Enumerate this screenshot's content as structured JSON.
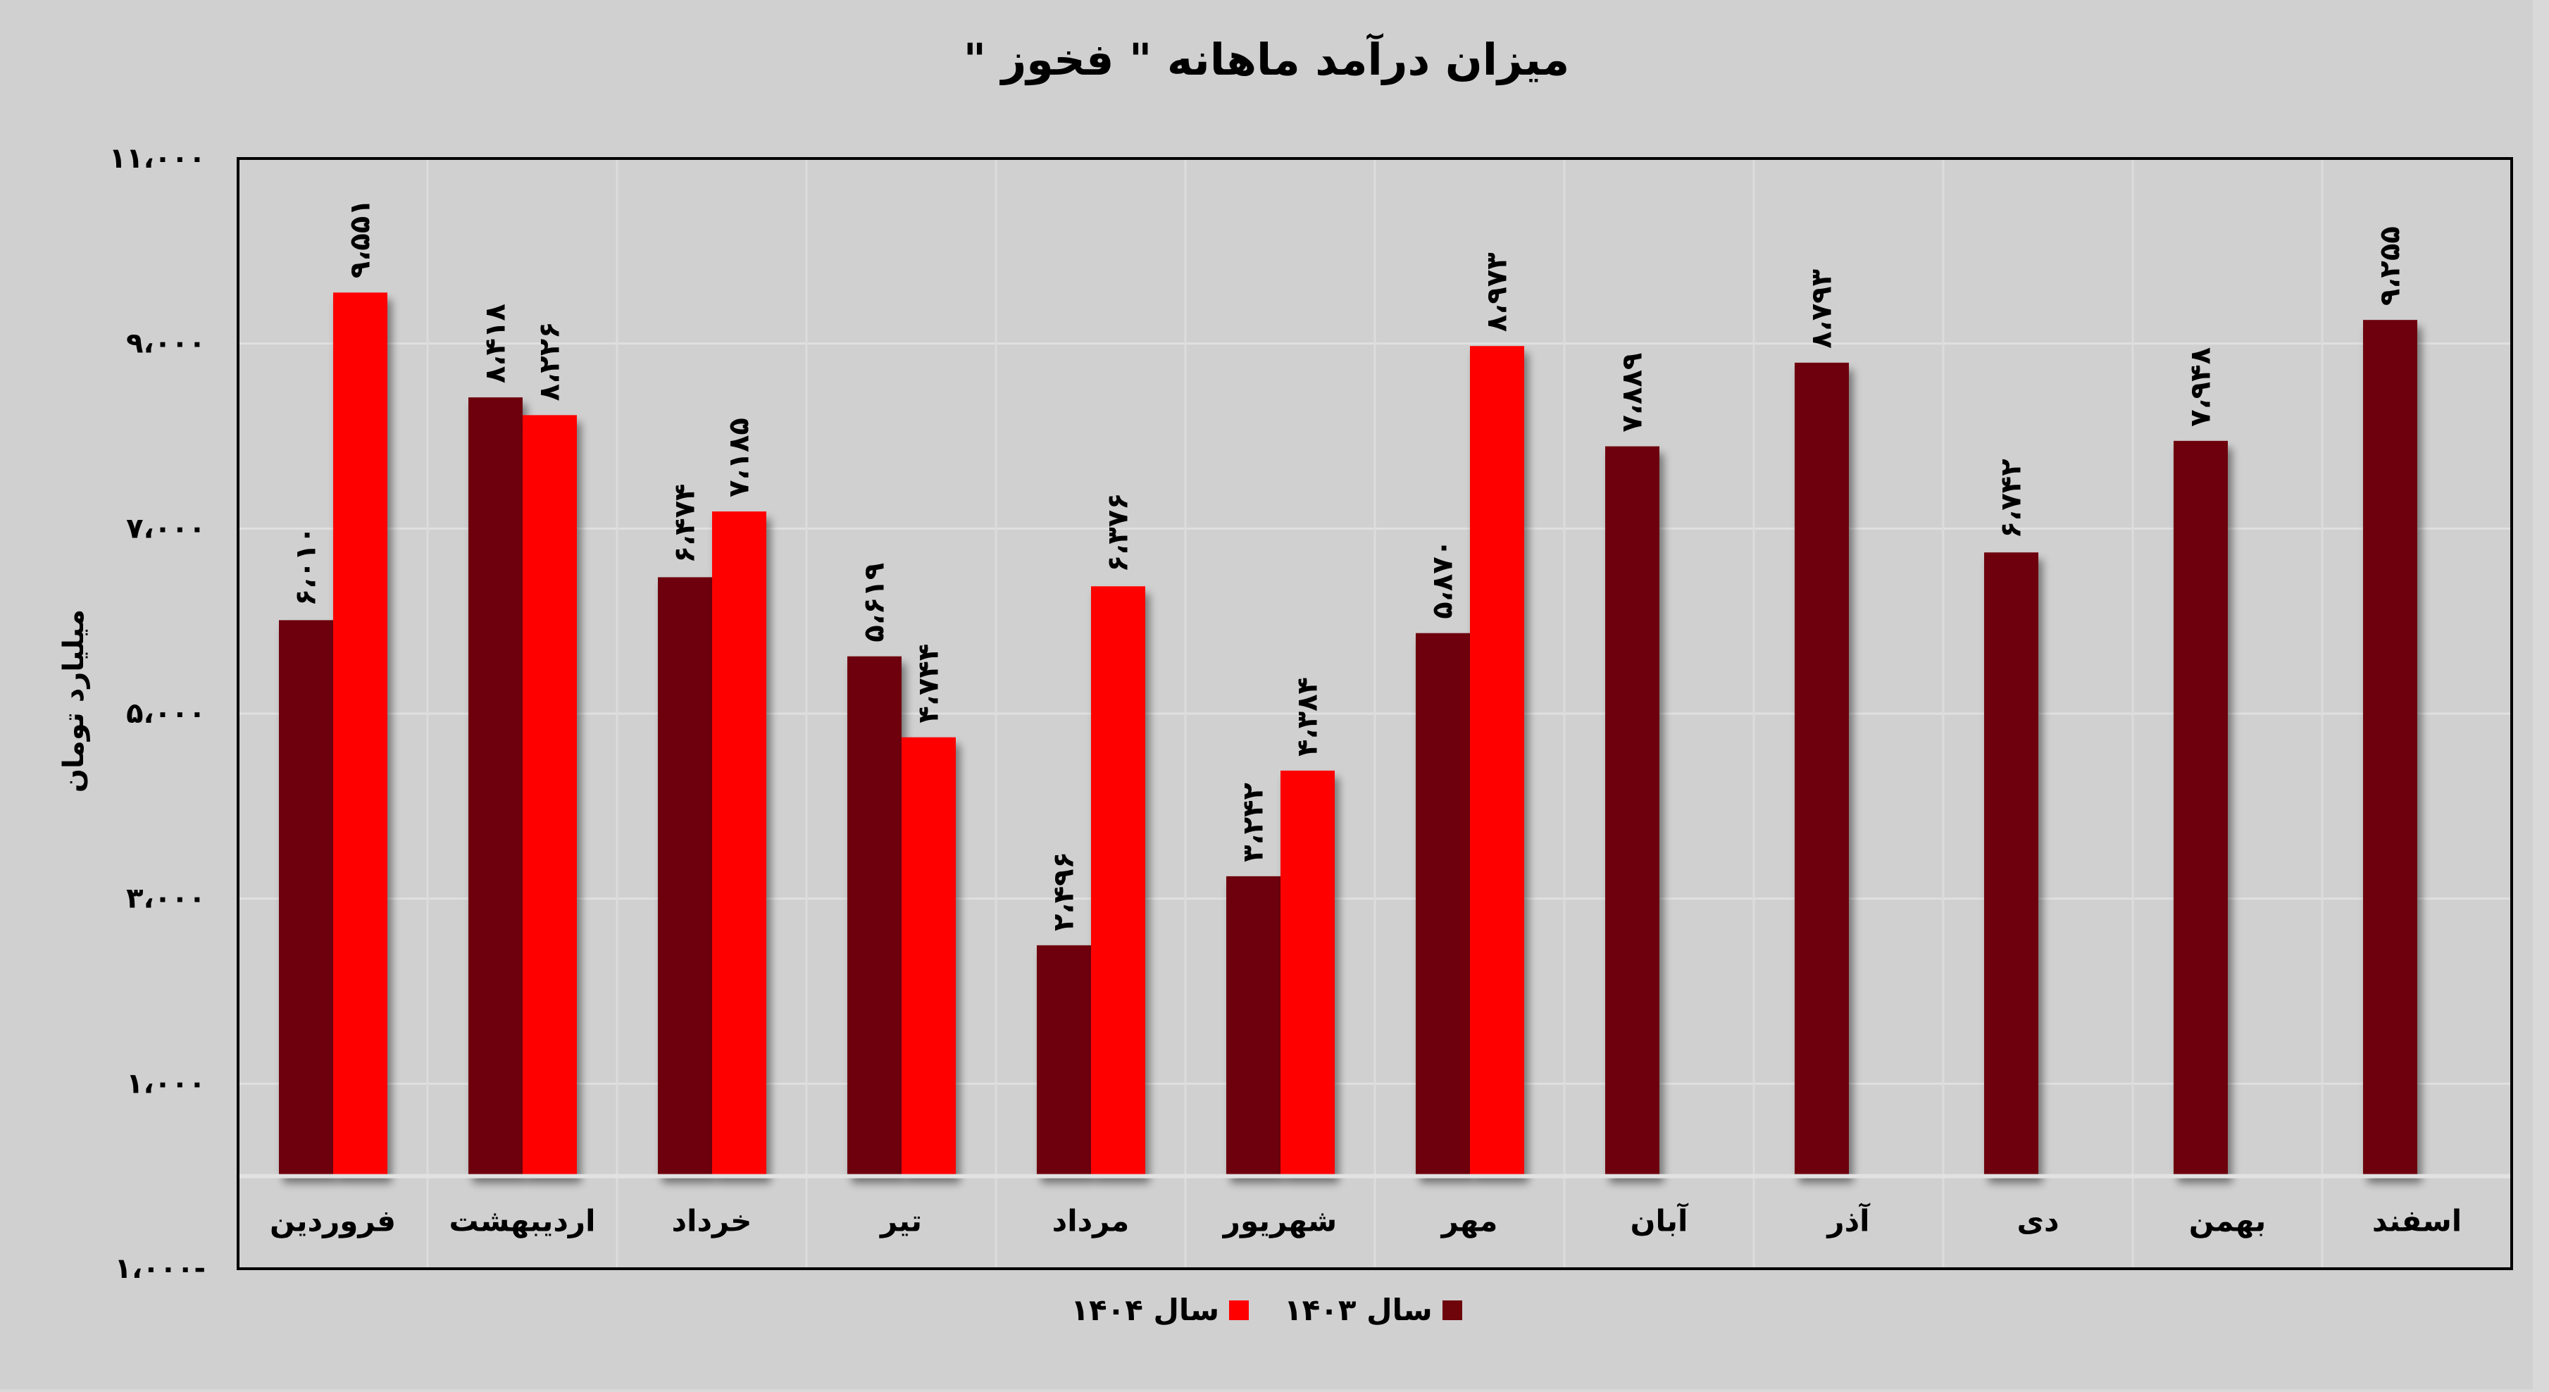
{
  "chart_data": {
    "type": "bar",
    "title": "میزان درآمد ماهانه \" فخوز \"",
    "xlabel": "",
    "ylabel": "میلیارد تومان",
    "ylim": [
      -1000,
      11000
    ],
    "yticks": [
      -1000,
      1000,
      3000,
      5000,
      7000,
      9000,
      11000
    ],
    "ytick_labels": [
      "۱،۰۰۰-",
      "۱،۰۰۰",
      "۳،۰۰۰",
      "۵،۰۰۰",
      "۷،۰۰۰",
      "۹،۰۰۰",
      "۱۱،۰۰۰"
    ],
    "grid": true,
    "legend_position": "bottom",
    "categories": [
      "فروردین",
      "اردیبهشت",
      "خرداد",
      "تیر",
      "مرداد",
      "شهریور",
      "مهر",
      "آبان",
      "آذر",
      "دی",
      "بهمن",
      "اسفند"
    ],
    "series": [
      {
        "name": "سال ۱۴۰۳",
        "color": "#6e050b",
        "values": [
          6010,
          8418,
          6474,
          5619,
          2496,
          3242,
          5870,
          7889,
          8793,
          6742,
          7948,
          9255
        ],
        "labels": [
          "۶،۰۱۰",
          "۸،۴۱۸",
          "۶،۴۷۴",
          "۵،۶۱۹",
          "۲،۴۹۶",
          "۳،۲۴۲",
          "۵،۸۷۰",
          "۷،۸۸۹",
          "۸،۷۹۳",
          "۶،۷۴۲",
          "۷،۹۴۸",
          "۹،۲۵۵"
        ]
      },
      {
        "name": "سال ۱۴۰۴",
        "color": "#ff0000",
        "values": [
          9551,
          8226,
          7185,
          4744,
          6376,
          4384,
          8973,
          null,
          null,
          null,
          null,
          null
        ],
        "labels": [
          "۹،۵۵۱",
          "۸،۲۲۶",
          "۷،۱۸۵",
          "۴،۷۴۴",
          "۶،۳۷۶",
          "۴،۳۸۴",
          "۸،۹۷۳",
          null,
          null,
          null,
          null,
          null
        ]
      }
    ]
  },
  "legend": {
    "items": [
      {
        "label": "سال ۱۴۰۳",
        "color": "#6e050b"
      },
      {
        "label": "سال ۱۴۰۴",
        "color": "#ff0000"
      }
    ]
  }
}
